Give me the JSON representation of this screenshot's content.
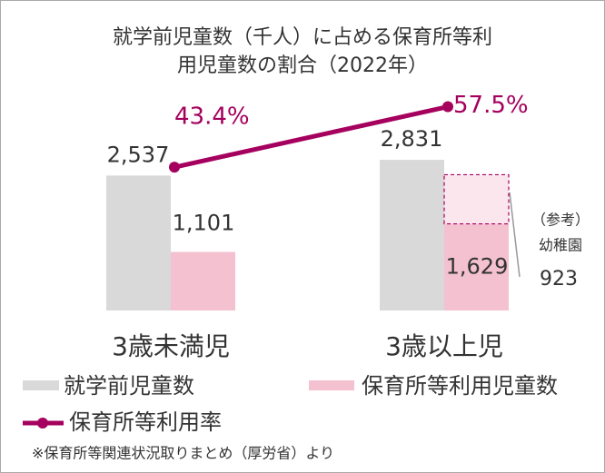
{
  "chart_data": {
    "type": "bar",
    "title": [
      "就学前児童数（千人）に占める保育所等利",
      "用児童数の割合（2022年）"
    ],
    "categories": [
      "3歳未満児",
      "3歳以上児"
    ],
    "series": [
      {
        "name": "就学前児童数",
        "color": "#d9d9d9",
        "values": [
          2537,
          2831
        ],
        "value_labels": [
          "2,537",
          "2,831"
        ]
      },
      {
        "name": "保育所等利用児童数",
        "color": "#f4c1d1",
        "values": [
          1101,
          1629
        ],
        "value_labels": [
          "1,101",
          "1,629"
        ]
      },
      {
        "name": "保育所等利用率",
        "color": "#a5005e",
        "type": "line",
        "axis": "y2",
        "values": [
          43.4,
          57.5
        ],
        "value_labels": [
          "43.4%",
          "57.5%"
        ]
      }
    ],
    "reference": {
      "label": [
        "（参考）",
        "幼稚園"
      ],
      "value": 923,
      "color": "#fbe6ee",
      "border": "#a5005e"
    },
    "ylim": [
      0,
      5000
    ],
    "y2lim": [
      10,
      72
    ],
    "legend": "bottom",
    "note": "※保育所等関連状況取りまとめ（厚労省）より"
  }
}
